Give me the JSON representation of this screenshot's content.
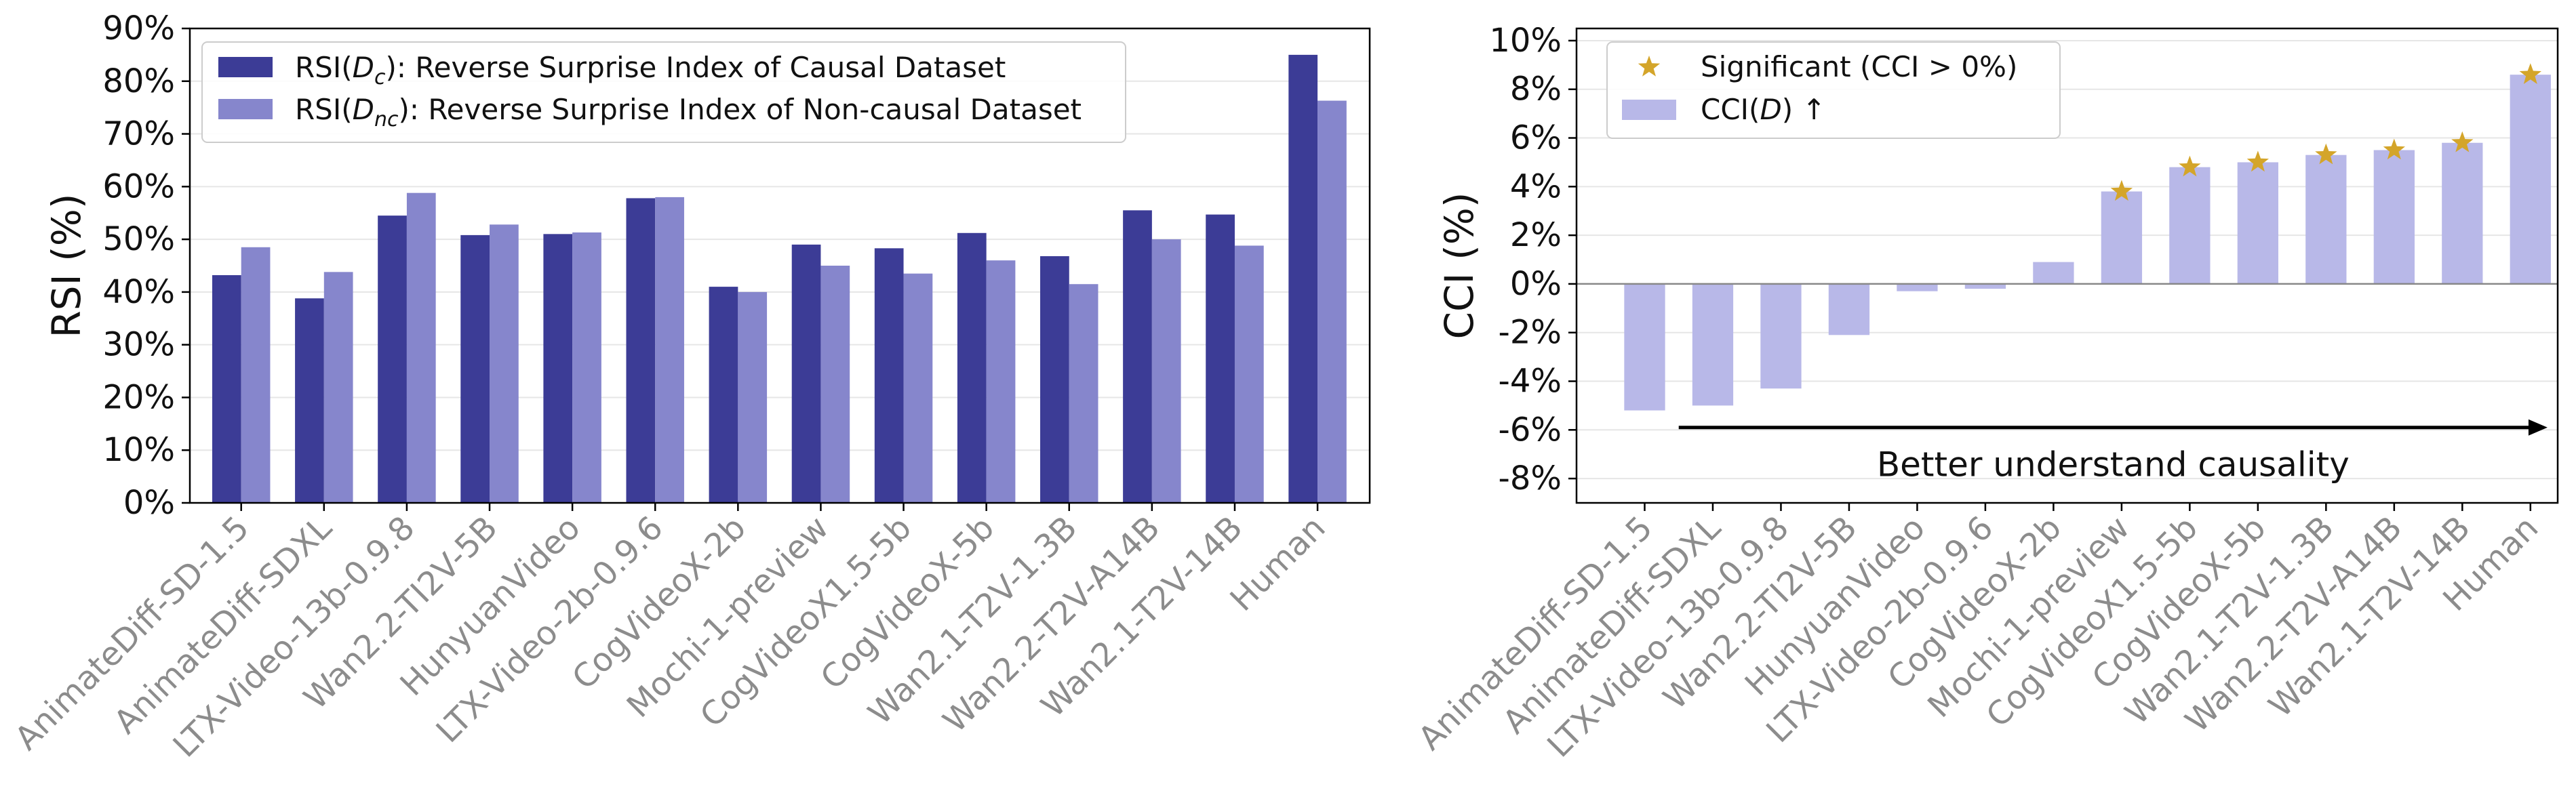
{
  "colors": {
    "causal": "#3c3c96",
    "noncausal": "#8686cc",
    "cci_bar": "#b8b8e8",
    "star": "#d4a52a",
    "grid": "#e6e6e6",
    "arrow": "#000000"
  },
  "chart_data": [
    {
      "type": "bar",
      "categories": [
        "AnimateDiff-SD-1.5",
        "AnimateDiff-SDXL",
        "LTX-Video-13b-0.9.8",
        "Wan2.2-TI2V-5B",
        "HunyuanVideo",
        "LTX-Video-2b-0.9.6",
        "CogVideoX-2b",
        "Mochi-1-preview",
        "CogVideoX1.5-5b",
        "CogVideoX-5b",
        "Wan2.1-T2V-1.3B",
        "Wan2.2-T2V-A14B",
        "Wan2.1-T2V-14B",
        "Human"
      ],
      "series": [
        {
          "name": "RSI(Dc): Reverse Surprise Index of Causal Dataset",
          "legend_prefix": "RSI(",
          "legend_sym": "D",
          "legend_sub": "c",
          "legend_suffix": "): Reverse Surprise Index of Causal Dataset",
          "values": [
            43.2,
            38.8,
            54.5,
            50.8,
            51.0,
            57.8,
            41.0,
            49.0,
            48.3,
            51.2,
            46.8,
            55.5,
            54.7,
            85.0
          ]
        },
        {
          "name": "RSI(Dnc): Reverse Surprise Index of Non-causal Dataset",
          "legend_prefix": "RSI(",
          "legend_sym": "D",
          "legend_sub": "nc",
          "legend_suffix": "): Reverse Surprise Index of Non-causal Dataset",
          "values": [
            48.5,
            43.8,
            58.8,
            52.8,
            51.3,
            58.0,
            40.0,
            45.0,
            43.5,
            46.0,
            41.5,
            50.0,
            48.8,
            76.3
          ]
        }
      ],
      "ylabel": "RSI (%)",
      "ylim": [
        0,
        90
      ],
      "yticks": [
        "0%",
        "10%",
        "20%",
        "30%",
        "40%",
        "50%",
        "60%",
        "70%",
        "80%",
        "90%"
      ],
      "grid": "horizontal",
      "legend_position": "top-left"
    },
    {
      "type": "bar",
      "categories": [
        "AnimateDiff-SD-1.5",
        "AnimateDiff-SDXL",
        "LTX-Video-13b-0.9.8",
        "Wan2.2-TI2V-5B",
        "HunyuanVideo",
        "LTX-Video-2b-0.9.6",
        "CogVideoX-2b",
        "Mochi-1-preview",
        "CogVideoX1.5-5b",
        "CogVideoX-5b",
        "Wan2.1-T2V-1.3B",
        "Wan2.2-T2V-A14B",
        "Wan2.1-T2V-14B",
        "Human"
      ],
      "values": [
        -5.2,
        -5.0,
        -4.3,
        -2.1,
        -0.3,
        -0.2,
        0.9,
        3.8,
        4.8,
        5.0,
        5.3,
        5.5,
        5.8,
        8.6
      ],
      "significant": [
        false,
        false,
        false,
        false,
        false,
        false,
        false,
        true,
        true,
        true,
        true,
        true,
        true,
        true
      ],
      "ylabel": "CCI (%)",
      "ylim": [
        -9,
        10.5
      ],
      "yticks": [
        "-8%",
        "-6%",
        "-4%",
        "-2%",
        "0%",
        "2%",
        "4%",
        "6%",
        "8%",
        "10%"
      ],
      "legend": {
        "star_label": "Significant (CCI  >  0%)",
        "bar_prefix": "CCI(",
        "bar_sym": "D",
        "bar_suffix": ")  ↑"
      },
      "annotation": "Better understand causality",
      "grid": "horizontal",
      "legend_position": "top-left"
    }
  ]
}
